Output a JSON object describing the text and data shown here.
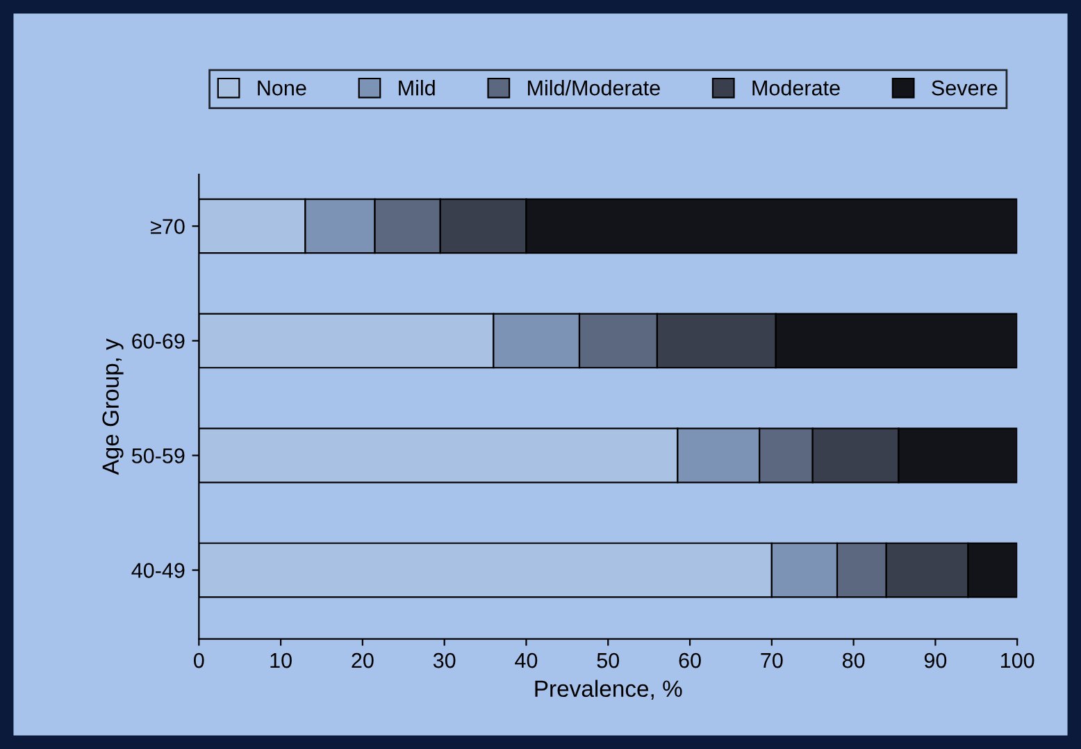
{
  "chart_data": {
    "type": "bar",
    "orientation": "horizontal",
    "stacked": true,
    "xlabel": "Prevalence, %",
    "ylabel": "Age Group, y",
    "categories": [
      "≥70",
      "60-69",
      "50-59",
      "40-49"
    ],
    "series": [
      {
        "name": "None",
        "color": "#a9c1e3",
        "values": [
          13,
          36,
          58.5,
          70
        ]
      },
      {
        "name": "Mild",
        "color": "#7d93b5",
        "values": [
          8.5,
          10.5,
          10,
          8
        ]
      },
      {
        "name": "Mild/Moderate",
        "color": "#5b6880",
        "values": [
          8,
          9.5,
          6.5,
          6
        ]
      },
      {
        "name": "Moderate",
        "color": "#393f4c",
        "values": [
          10.5,
          14.5,
          10.5,
          10
        ]
      },
      {
        "name": "Severe",
        "color": "#121419",
        "values": [
          60,
          29.5,
          14.5,
          6
        ]
      }
    ],
    "xlim": [
      0,
      100
    ],
    "xticks": [
      0,
      10,
      20,
      30,
      40,
      50,
      60,
      70,
      80,
      90,
      100
    ],
    "grid": false,
    "legend": "top"
  }
}
